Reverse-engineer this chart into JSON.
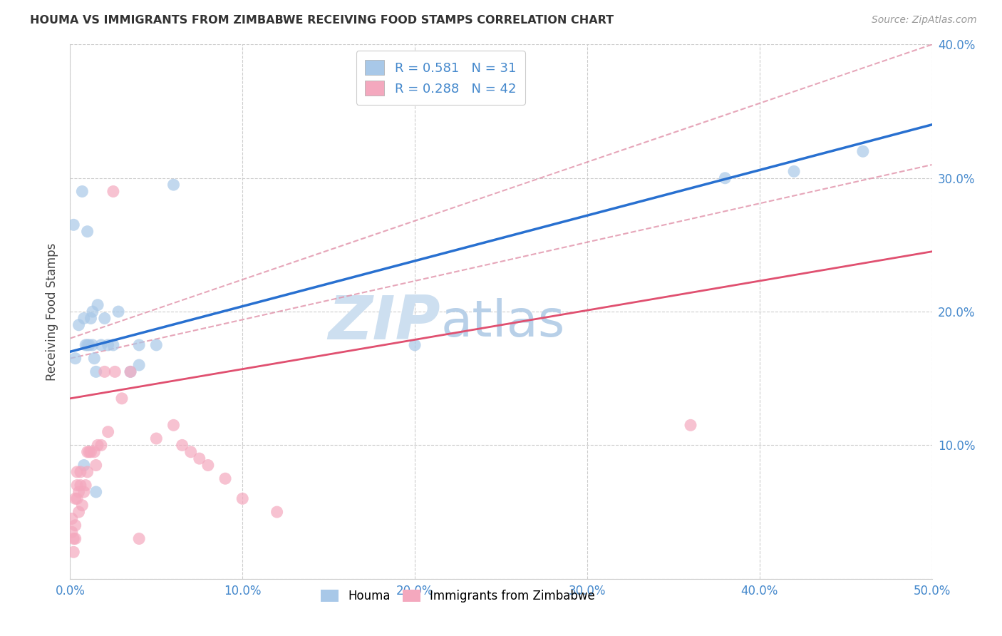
{
  "title": "HOUMA VS IMMIGRANTS FROM ZIMBABWE RECEIVING FOOD STAMPS CORRELATION CHART",
  "source": "Source: ZipAtlas.com",
  "ylabel": "Receiving Food Stamps",
  "xlim": [
    0.0,
    0.5
  ],
  "ylim": [
    0.0,
    0.4
  ],
  "xtick_vals": [
    0.0,
    0.1,
    0.2,
    0.3,
    0.4,
    0.5
  ],
  "xtick_labels": [
    "0.0%",
    "10.0%",
    "20.0%",
    "30.0%",
    "40.0%",
    "50.0%"
  ],
  "ytick_vals": [
    0.0,
    0.1,
    0.2,
    0.3,
    0.4
  ],
  "ytick_labels": [
    "",
    "10.0%",
    "20.0%",
    "30.0%",
    "40.0%"
  ],
  "houma_color": "#a8c8e8",
  "zimbabwe_color": "#f4a8be",
  "houma_line_color": "#2870d0",
  "zimbabwe_line_color": "#e05070",
  "conf_line_color": "#e090a8",
  "watermark_color": "#ddeeff",
  "background_color": "#ffffff",
  "grid_color": "#cccccc",
  "axis_tick_color": "#4488cc",
  "label_color": "#444444",
  "title_color": "#333333",
  "houma_R": 0.581,
  "houma_N": 31,
  "zimbabwe_R": 0.288,
  "zimbabwe_N": 42,
  "houma_x": [
    0.002,
    0.003,
    0.005,
    0.007,
    0.008,
    0.009,
    0.01,
    0.011,
    0.012,
    0.013,
    0.014,
    0.015,
    0.016,
    0.018,
    0.02,
    0.022,
    0.025,
    0.028,
    0.035,
    0.04,
    0.05,
    0.06,
    0.38,
    0.42,
    0.46,
    0.015,
    0.013,
    0.01,
    0.008,
    0.04,
    0.2
  ],
  "houma_y": [
    0.265,
    0.165,
    0.19,
    0.29,
    0.195,
    0.175,
    0.26,
    0.175,
    0.195,
    0.175,
    0.165,
    0.155,
    0.205,
    0.175,
    0.195,
    0.175,
    0.175,
    0.2,
    0.155,
    0.175,
    0.175,
    0.295,
    0.3,
    0.305,
    0.32,
    0.065,
    0.2,
    0.175,
    0.085,
    0.16,
    0.175
  ],
  "zimbabwe_x": [
    0.001,
    0.001,
    0.002,
    0.002,
    0.003,
    0.003,
    0.003,
    0.004,
    0.004,
    0.004,
    0.005,
    0.005,
    0.006,
    0.006,
    0.007,
    0.008,
    0.009,
    0.01,
    0.01,
    0.011,
    0.012,
    0.014,
    0.015,
    0.016,
    0.018,
    0.02,
    0.022,
    0.025,
    0.026,
    0.03,
    0.035,
    0.04,
    0.05,
    0.06,
    0.065,
    0.07,
    0.075,
    0.08,
    0.09,
    0.1,
    0.12,
    0.36
  ],
  "zimbabwe_y": [
    0.035,
    0.045,
    0.03,
    0.02,
    0.03,
    0.04,
    0.06,
    0.06,
    0.08,
    0.07,
    0.05,
    0.065,
    0.07,
    0.08,
    0.055,
    0.065,
    0.07,
    0.08,
    0.095,
    0.095,
    0.095,
    0.095,
    0.085,
    0.1,
    0.1,
    0.155,
    0.11,
    0.29,
    0.155,
    0.135,
    0.155,
    0.03,
    0.105,
    0.115,
    0.1,
    0.095,
    0.09,
    0.085,
    0.075,
    0.06,
    0.05,
    0.115
  ]
}
